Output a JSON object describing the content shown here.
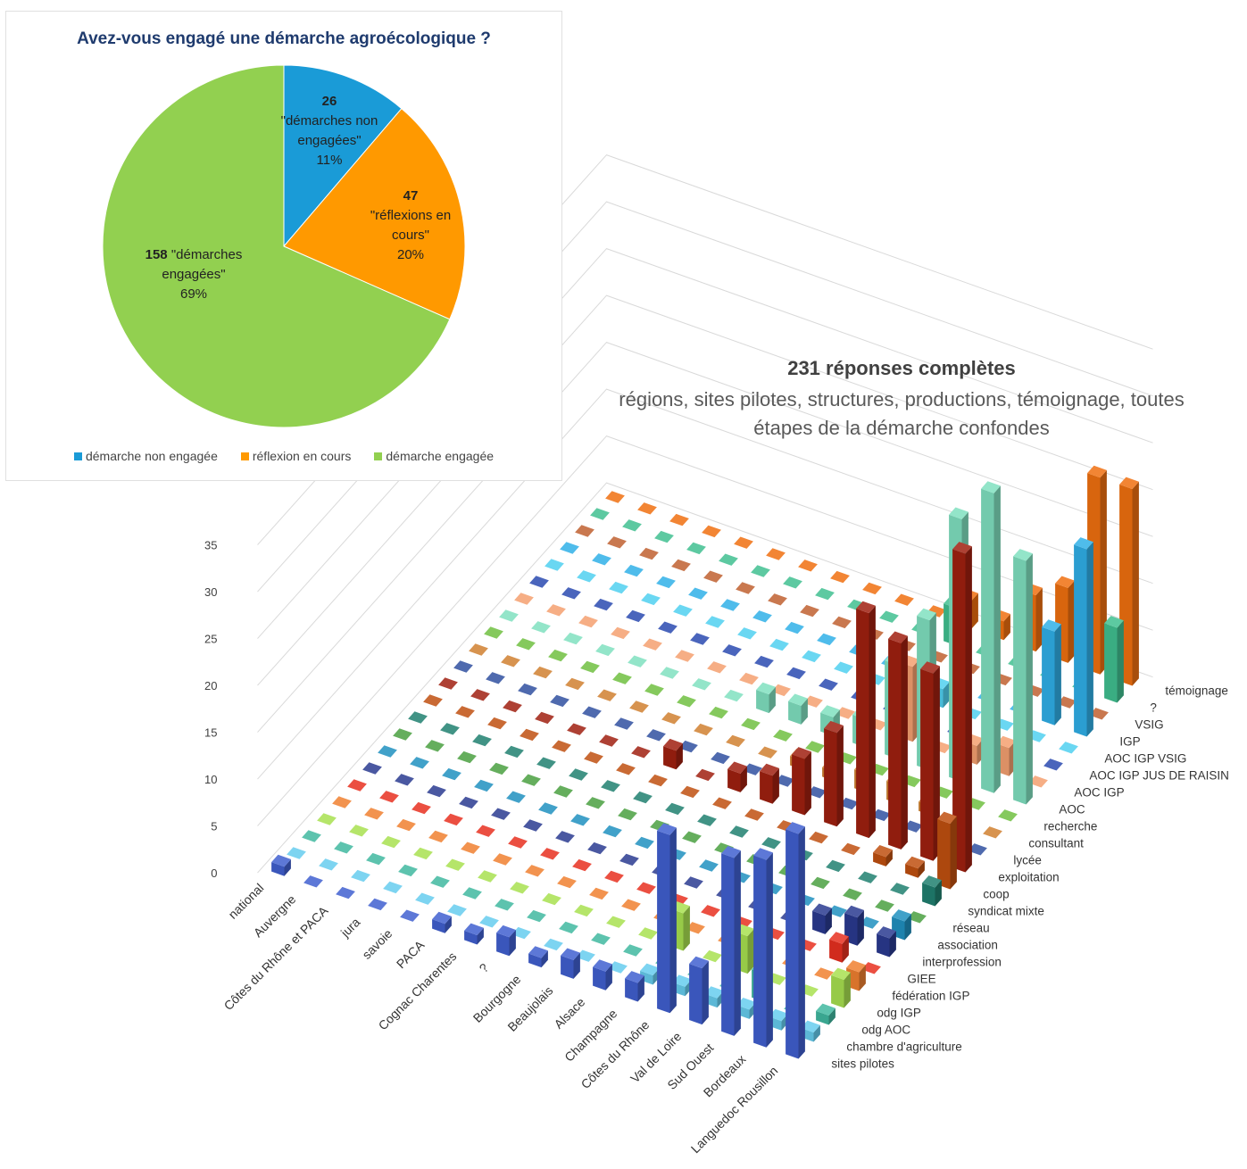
{
  "chart_data": [
    {
      "type": "pie",
      "title": "Avez-vous engagé une démarche agroécologique ?",
      "categories": [
        "démarche non engagée",
        "réflexion en cours",
        "démarche engagée"
      ],
      "values": [
        26,
        47,
        158
      ],
      "value_labels": [
        "26",
        "47",
        "158"
      ],
      "slice_labels": [
        "\"démarches non engagées\"",
        "\"réflexions en cours\"",
        "\"démarches engagées\""
      ],
      "percents": [
        11,
        20,
        69
      ],
      "percent_labels": [
        "11%",
        "20%",
        "69%"
      ],
      "colors": [
        "#1a9bd7",
        "#ff9900",
        "#92d050"
      ]
    },
    {
      "type": "bar3d",
      "title": "231 réponses complètes",
      "subtitle": "régions, sites pilotes, structures, productions, témoignage, toutes étapes de la démarche confondes",
      "categories": [
        "national",
        "Auvergne",
        "Côtes du Rhône et PACA",
        "jura",
        "savoie",
        "PACA",
        "Cognac Charentes",
        "?",
        "Bourgogne",
        "Beaujolais",
        "Alsace",
        "Champagne",
        "Côtes du Rhône",
        "Val de Loire",
        "Sud Ouest",
        "Bordeaux",
        "Languedoc Rousillon"
      ],
      "zlim": [
        0,
        35
      ],
      "zticks": [
        0,
        5,
        10,
        15,
        20,
        25,
        30,
        35
      ],
      "series": [
        {
          "name": "sites pilotes",
          "color": "#4060d0",
          "values": [
            1,
            0,
            0,
            0,
            0,
            1,
            1,
            2,
            1,
            2,
            2,
            2,
            19,
            6,
            19,
            20,
            24
          ]
        },
        {
          "name": "chambre d'agriculture",
          "color": "#66ccee",
          "values": [
            0,
            0,
            0,
            0,
            0,
            0,
            0,
            0,
            0,
            0,
            0,
            1,
            1,
            1,
            1,
            1,
            1
          ]
        },
        {
          "name": "odg AOC",
          "color": "#40b8a0",
          "values": [
            0,
            0,
            0,
            0,
            0,
            0,
            0,
            0,
            0,
            0,
            0,
            0,
            0,
            0,
            3,
            0,
            1
          ]
        },
        {
          "name": "odg IGP",
          "color": "#a8e050",
          "values": [
            0,
            0,
            0,
            0,
            0,
            0,
            0,
            0,
            0,
            0,
            0,
            4,
            0,
            4,
            0,
            0,
            3
          ]
        },
        {
          "name": "fédération IGP",
          "color": "#f08030",
          "values": [
            0,
            0,
            0,
            0,
            0,
            0,
            0,
            0,
            0,
            0,
            0,
            0,
            0,
            0,
            0,
            0,
            2
          ]
        },
        {
          "name": "GIEE",
          "color": "#e83020",
          "values": [
            0,
            0,
            0,
            0,
            0,
            0,
            0,
            0,
            0,
            0,
            0,
            0,
            0,
            0,
            0,
            2,
            0
          ]
        },
        {
          "name": "interprofession",
          "color": "#2a3a90",
          "values": [
            0,
            0,
            0,
            0,
            0,
            0,
            0,
            0,
            0,
            0,
            0,
            0,
            0,
            0,
            2,
            3,
            2
          ]
        },
        {
          "name": "association",
          "color": "#2090c0",
          "values": [
            0,
            0,
            0,
            0,
            0,
            0,
            0,
            0,
            0,
            0,
            0,
            0,
            0,
            0,
            0,
            0,
            2
          ]
        },
        {
          "name": "réseau",
          "color": "#4aa040",
          "values": [
            0,
            0,
            0,
            0,
            0,
            0,
            0,
            0,
            0,
            0,
            0,
            0,
            0,
            0,
            0,
            0,
            0
          ]
        },
        {
          "name": "syndicat mixte",
          "color": "#208070",
          "values": [
            0,
            0,
            0,
            0,
            0,
            0,
            0,
            0,
            0,
            0,
            0,
            0,
            0,
            0,
            0,
            0,
            2
          ]
        },
        {
          "name": "coop",
          "color": "#c05010",
          "values": [
            0,
            0,
            0,
            0,
            0,
            0,
            0,
            0,
            0,
            0,
            0,
            0,
            0,
            0,
            1,
            1,
            7
          ]
        },
        {
          "name": "exploitation",
          "color": "#a02010",
          "values": [
            0,
            0,
            0,
            0,
            0,
            0,
            0,
            2,
            0,
            2,
            3,
            6,
            10,
            24,
            22,
            20,
            34
          ]
        },
        {
          "name": "lycée",
          "color": "#3050a0",
          "values": [
            0,
            0,
            0,
            0,
            0,
            0,
            0,
            0,
            0,
            0,
            0,
            0,
            0,
            0,
            0,
            0,
            0
          ]
        },
        {
          "name": "consultant",
          "color": "#d08030",
          "values": [
            0,
            0,
            0,
            0,
            0,
            0,
            0,
            0,
            0,
            0,
            1,
            1,
            2,
            2,
            1,
            0,
            0
          ]
        },
        {
          "name": "recherche",
          "color": "#70c040",
          "values": [
            0,
            0,
            0,
            0,
            0,
            0,
            0,
            0,
            0,
            0,
            0,
            0,
            0,
            0,
            0,
            0,
            0
          ]
        },
        {
          "name": "AOC",
          "color": "#80e0c0",
          "values": [
            0,
            0,
            0,
            0,
            0,
            0,
            0,
            0,
            2,
            2,
            2,
            3,
            10,
            16,
            28,
            32,
            26
          ]
        },
        {
          "name": "AOC IGP",
          "color": "#f4a070",
          "values": [
            0,
            0,
            0,
            0,
            0,
            0,
            0,
            0,
            0,
            0,
            0,
            0,
            8,
            0,
            2,
            3,
            0
          ]
        },
        {
          "name": "AOC IGP JUS DE RAISIN",
          "color": "#2a4ab0",
          "values": [
            0,
            0,
            0,
            0,
            0,
            0,
            0,
            0,
            0,
            0,
            0,
            0,
            0,
            0,
            0,
            0,
            0
          ]
        },
        {
          "name": "AOC IGP VSIG",
          "color": "#50d0f0",
          "values": [
            0,
            0,
            0,
            0,
            0,
            0,
            0,
            0,
            0,
            0,
            0,
            0,
            2,
            0,
            0,
            0,
            0
          ]
        },
        {
          "name": "IGP",
          "color": "#30b0e8",
          "values": [
            0,
            0,
            0,
            0,
            0,
            0,
            0,
            0,
            0,
            0,
            0,
            0,
            0,
            0,
            0,
            10,
            20
          ]
        },
        {
          "name": "VSIG",
          "color": "#c06030",
          "values": [
            0,
            0,
            0,
            0,
            0,
            0,
            0,
            0,
            0,
            0,
            0,
            0,
            0,
            0,
            0,
            0,
            0
          ]
        },
        {
          "name": "?",
          "color": "#40c090",
          "values": [
            0,
            0,
            0,
            0,
            0,
            0,
            0,
            0,
            0,
            0,
            0,
            4,
            0,
            0,
            0,
            0,
            8
          ]
        },
        {
          "name": "témoignage",
          "color": "#f07010",
          "values": [
            0,
            0,
            0,
            0,
            0,
            0,
            0,
            0,
            0,
            0,
            0,
            3,
            2,
            6,
            8,
            21,
            21
          ]
        }
      ]
    }
  ]
}
